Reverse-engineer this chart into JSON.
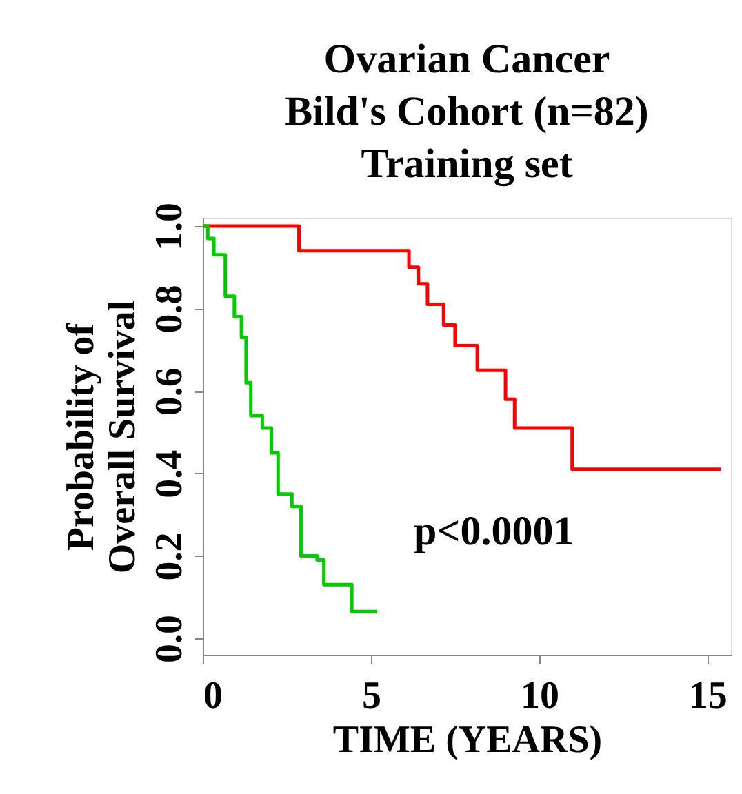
{
  "chart_data": {
    "type": "step",
    "title": [
      "Ovarian Cancer",
      "Bild's Cohort (n=82)",
      "Training set"
    ],
    "xlabel": "TIME (YEARS)",
    "ylabel": [
      "Probability of",
      "Overall Survival"
    ],
    "xlim": [
      0,
      15.7
    ],
    "xticks": [
      0,
      5,
      10,
      15
    ],
    "ylim": [
      -0.04,
      1.02
    ],
    "yticks": [
      {
        "value": 0,
        "label": "0.0"
      },
      0.2,
      0.4,
      0.6,
      0.8,
      {
        "value": 1,
        "label": "1.0"
      }
    ],
    "grid": false,
    "line_style": "solid",
    "marker": "none",
    "annotations": [
      "p<0.0001"
    ],
    "series": [
      {
        "color": "#ff0000",
        "x": [
          0,
          2.86,
          6.13,
          6.41,
          6.68,
          7.16,
          7.5,
          8.16,
          9.0,
          9.27,
          10.98,
          15.4
        ],
        "values": [
          1.0,
          0.94,
          0.9,
          0.86,
          0.81,
          0.76,
          0.71,
          0.65,
          0.58,
          0.51,
          0.41,
          0.41
        ]
      },
      {
        "color": "#00cc00",
        "x": [
          0,
          0.15,
          0.33,
          0.67,
          0.94,
          1.15,
          1.29,
          1.43,
          1.77,
          2.04,
          2.24,
          2.65,
          2.92,
          3.4,
          3.6,
          4.43,
          5.18
        ],
        "values": [
          1.0,
          0.97,
          0.93,
          0.83,
          0.78,
          0.73,
          0.62,
          0.54,
          0.51,
          0.45,
          0.35,
          0.32,
          0.2,
          0.19,
          0.13,
          0.065,
          0.065
        ]
      }
    ]
  }
}
